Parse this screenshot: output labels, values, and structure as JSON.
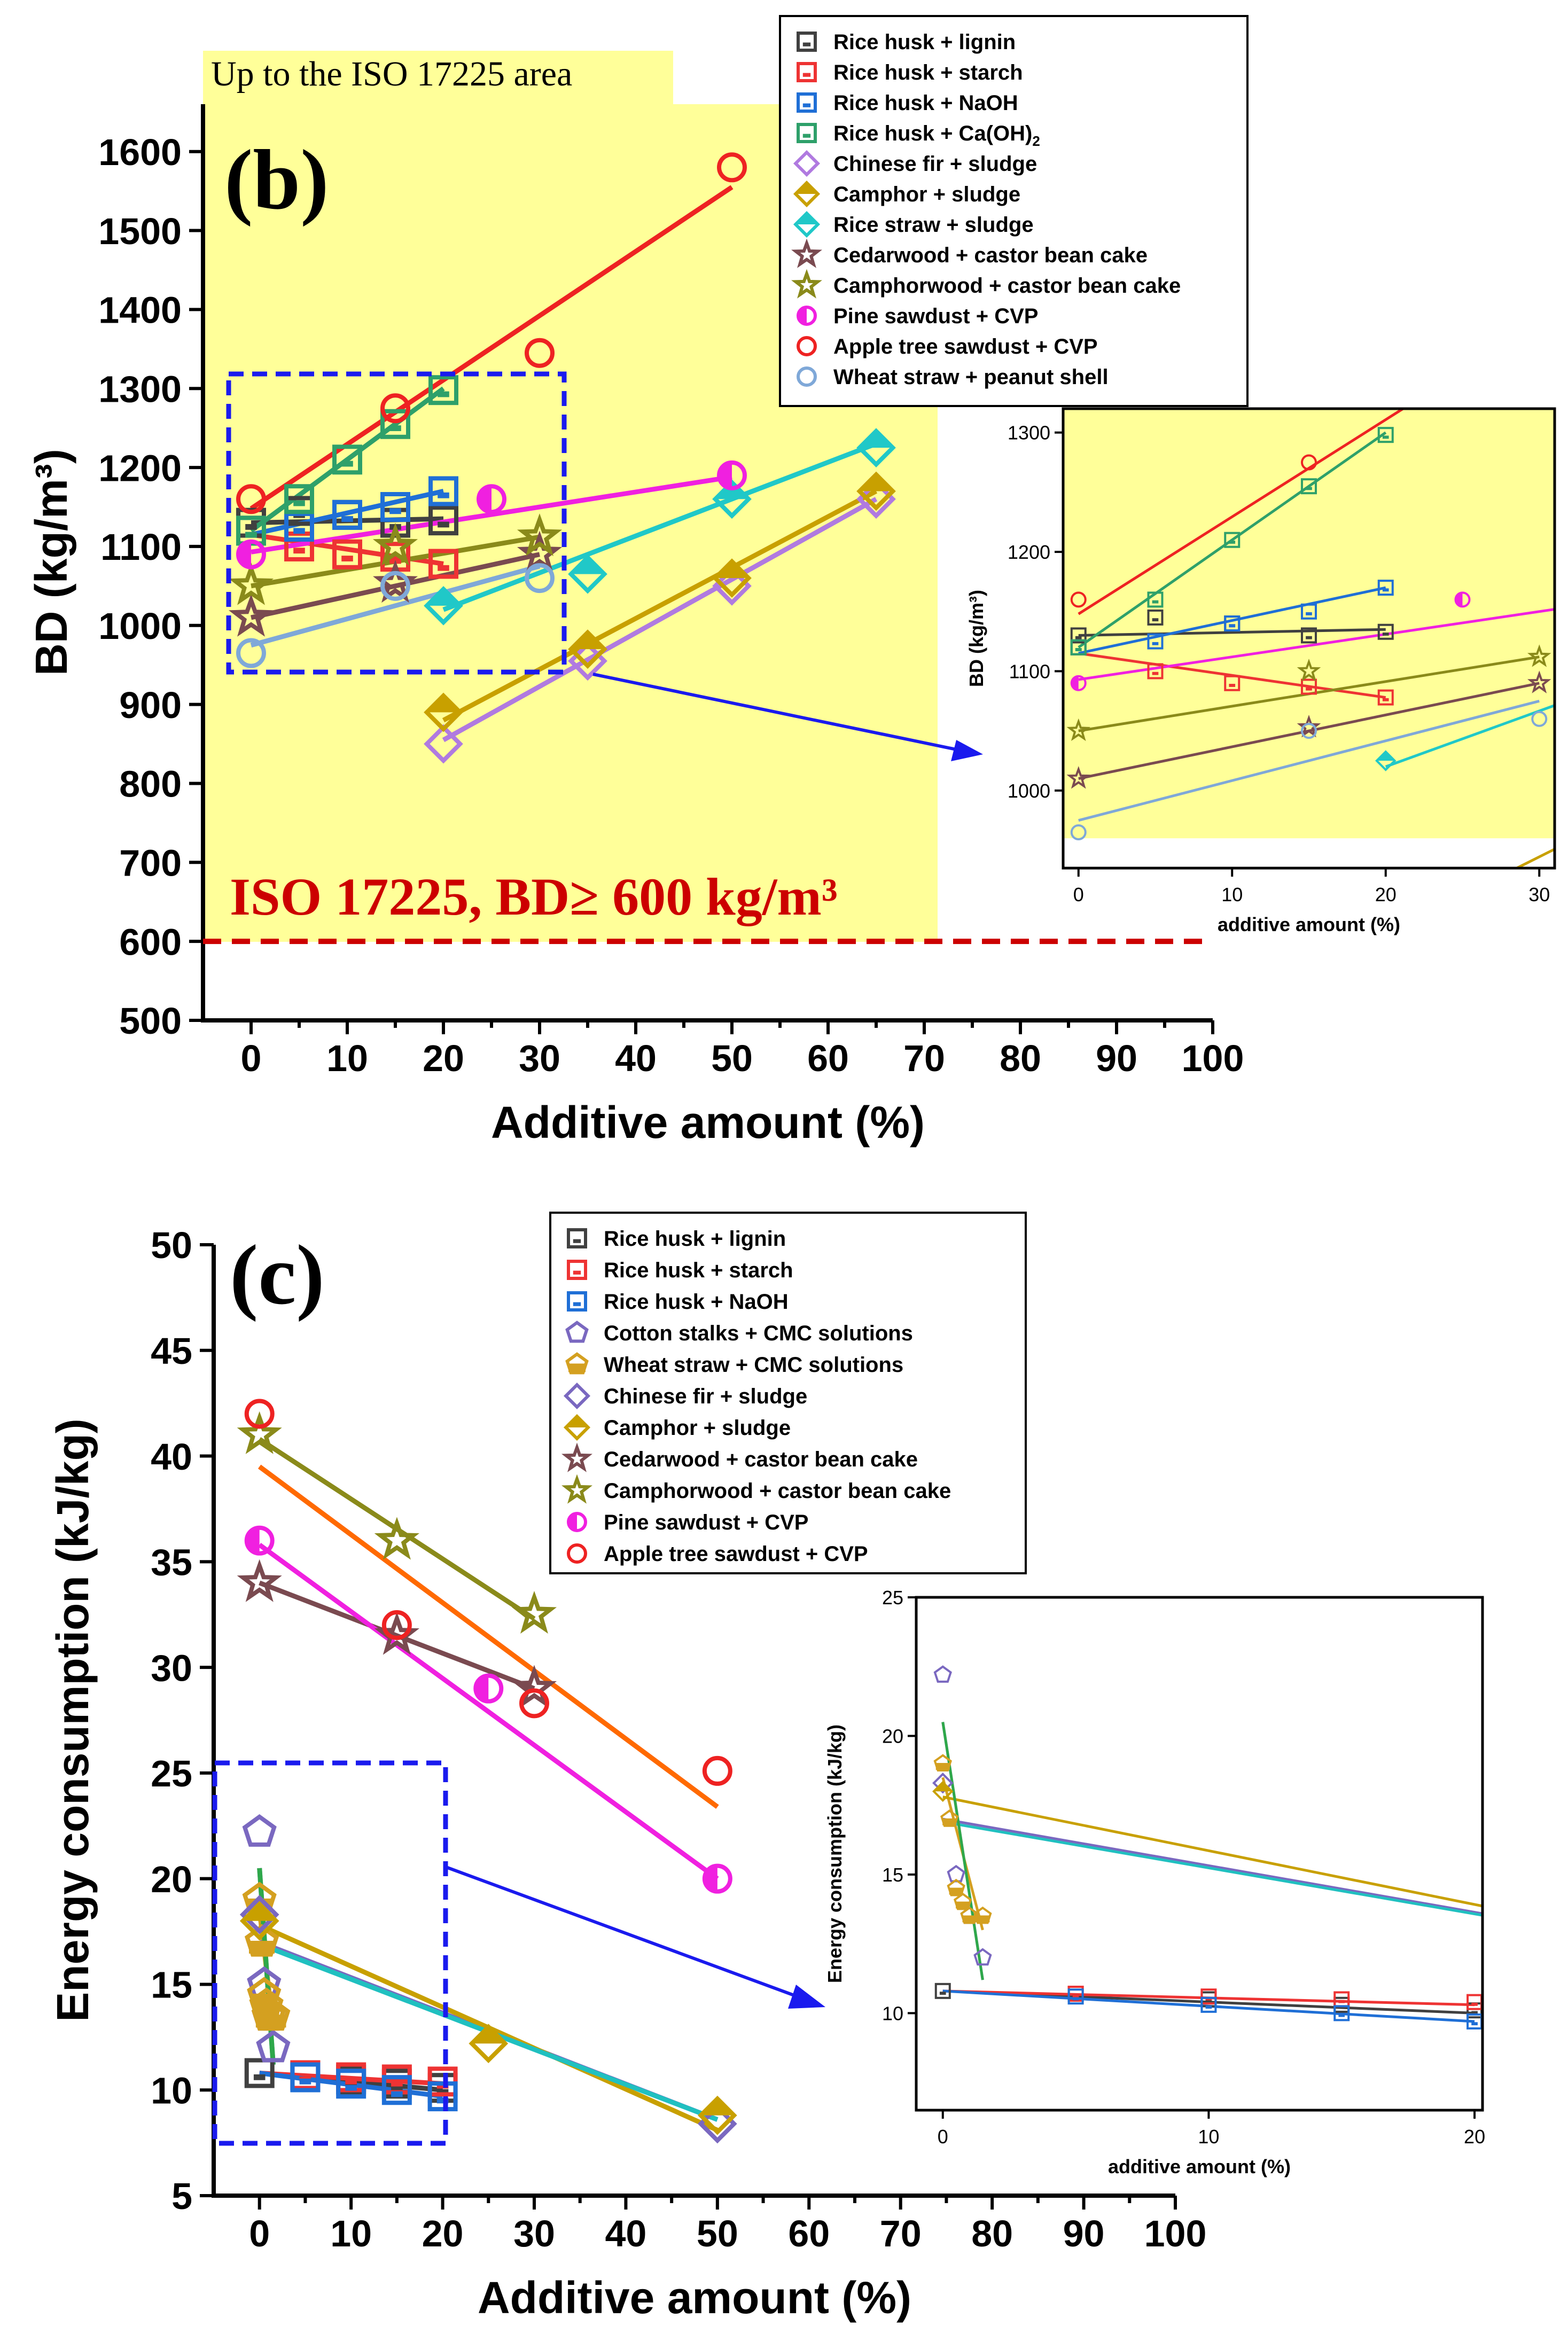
{
  "chart_data": [
    {
      "panel": "b",
      "type": "line",
      "panel_label": "(b)",
      "xlabel": "Additive amount (%)",
      "ylabel": "BD (kg/m³)",
      "xlim": [
        -5,
        100
      ],
      "ylim": [
        500,
        1660
      ],
      "xticks": [
        0,
        10,
        20,
        30,
        40,
        50,
        60,
        70,
        80,
        90,
        100
      ],
      "yticks": [
        500,
        600,
        700,
        800,
        900,
        1000,
        1100,
        1200,
        1300,
        1400,
        1500,
        1600
      ],
      "annotation_region": "Up to the ISO 17225 area",
      "annotation_limit": "ISO 17225, BD≥ 600 kg/m³",
      "threshold": 600,
      "series": [
        {
          "name": "Rice husk + lignin",
          "color": "#404040",
          "marker": "square",
          "x": [
            0,
            5,
            10,
            15,
            20
          ],
          "y": [
            1130,
            1145,
            1140,
            1130,
            1133
          ],
          "fit": [
            [
              0,
              1130
            ],
            [
              20,
              1135
            ]
          ]
        },
        {
          "name": "Rice husk + starch",
          "color": "#ee3333",
          "marker": "square",
          "x": [
            0,
            5,
            10,
            15,
            20
          ],
          "y": [
            1120,
            1100,
            1090,
            1087,
            1078
          ],
          "fit": [
            [
              0,
              1115
            ],
            [
              20,
              1078
            ]
          ]
        },
        {
          "name": "Rice husk + NaOH",
          "color": "#1f6fd6",
          "marker": "square",
          "x": [
            0,
            5,
            10,
            15,
            20
          ],
          "y": [
            1120,
            1125,
            1140,
            1150,
            1170
          ],
          "fit": [
            [
              0,
              1115
            ],
            [
              20,
              1170
            ]
          ]
        },
        {
          "name": "Rice husk + Ca(OH)2",
          "color": "#2ea06a",
          "marker": "square",
          "x": [
            0,
            5,
            10,
            15,
            20
          ],
          "y": [
            1120,
            1160,
            1210,
            1255,
            1298
          ],
          "fit": [
            [
              0,
              1120
            ],
            [
              20,
              1300
            ]
          ]
        },
        {
          "name": "Chinese fir + sludge",
          "color": "#b07ae0",
          "marker": "diamond",
          "x": [
            20,
            35,
            50,
            65
          ],
          "y": [
            850,
            955,
            1050,
            1160
          ],
          "fit": [
            [
              20,
              855
            ],
            [
              65,
              1160
            ]
          ]
        },
        {
          "name": "Camphor + sludge",
          "color": "#c8a000",
          "marker": "diamond",
          "x": [
            20,
            35,
            50,
            65
          ],
          "y": [
            890,
            970,
            1060,
            1170
          ],
          "fit": [
            [
              20,
              880
            ],
            [
              65,
              1170
            ]
          ]
        },
        {
          "name": "Rice straw + sludge",
          "color": "#20c8c8",
          "marker": "diamond",
          "x": [
            20,
            35,
            50,
            65
          ],
          "y": [
            1025,
            1065,
            1160,
            1225
          ],
          "fit": [
            [
              20,
              1020
            ],
            [
              65,
              1230
            ]
          ]
        },
        {
          "name": "Cedarwood + castor bean cake",
          "color": "#7a4a50",
          "marker": "star",
          "x": [
            0,
            15,
            30
          ],
          "y": [
            1010,
            1053,
            1090
          ],
          "fit": [
            [
              0,
              1010
            ],
            [
              30,
              1090
            ]
          ]
        },
        {
          "name": "Camphorwood + castor bean cake",
          "color": "#8a8a1a",
          "marker": "star",
          "x": [
            0,
            15,
            30
          ],
          "y": [
            1050,
            1100,
            1112
          ],
          "fit": [
            [
              0,
              1050
            ],
            [
              30,
              1112
            ]
          ]
        },
        {
          "name": "Pine sawdust + CVP",
          "color": "#f020e0",
          "marker": "halfcircle",
          "x": [
            0,
            25,
            50
          ],
          "y": [
            1090,
            1160,
            1190
          ],
          "fit": [
            [
              0,
              1093
            ],
            [
              50,
              1188
            ]
          ]
        },
        {
          "name": "Apple tree sawdust + CVP",
          "color": "#ee2222",
          "marker": "circle",
          "x": [
            0,
            15,
            30,
            50
          ],
          "y": [
            1160,
            1275,
            1345,
            1580
          ],
          "fit": [
            [
              0,
              1148
            ],
            [
              50,
              1555
            ]
          ]
        },
        {
          "name": "Wheat straw + peanut shell",
          "color": "#7fa8d8",
          "marker": "circle",
          "x": [
            0,
            15,
            30
          ],
          "y": [
            965,
            1050,
            1060
          ],
          "fit": [
            [
              0,
              975
            ],
            [
              30,
              1075
            ]
          ]
        }
      ],
      "inset": {
        "xlabel": "additive amount (%)",
        "ylabel": "BD (kg/m³)",
        "xlim": [
          -1,
          31
        ],
        "ylim": [
          935,
          1320
        ],
        "xticks": [
          0,
          10,
          20,
          30
        ],
        "yticks": [
          1000,
          1100,
          1200,
          1300
        ]
      }
    },
    {
      "panel": "c",
      "type": "line",
      "panel_label": "(c)",
      "xlabel": "Additive amount (%)",
      "ylabel": "Energy consumption (kJ/kg)",
      "xlim": [
        -5,
        100
      ],
      "ylim": [
        5,
        50
      ],
      "xticks": [
        0,
        10,
        20,
        30,
        40,
        50,
        60,
        70,
        80,
        90,
        100
      ],
      "yticks": [
        5,
        10,
        15,
        20,
        25,
        30,
        35,
        40,
        45,
        50
      ],
      "series": [
        {
          "name": "Rice husk + lignin",
          "color": "#404040",
          "marker": "square",
          "x": [
            0,
            5,
            10,
            15,
            20
          ],
          "y": [
            10.8,
            10.7,
            10.5,
            10.3,
            10.1
          ],
          "fit": [
            [
              0,
              10.8
            ],
            [
              20,
              10.0
            ]
          ]
        },
        {
          "name": "Rice husk + starch",
          "color": "#ee3333",
          "marker": "square",
          "x": [
            5,
            10,
            15,
            20
          ],
          "y": [
            10.7,
            10.6,
            10.5,
            10.4
          ],
          "fit": [
            [
              0,
              10.8
            ],
            [
              20,
              10.3
            ]
          ]
        },
        {
          "name": "Rice husk + NaOH",
          "color": "#1f6fd6",
          "marker": "square",
          "x": [
            5,
            10,
            15,
            20
          ],
          "y": [
            10.6,
            10.3,
            10.0,
            9.7
          ],
          "fit": [
            [
              0,
              10.8
            ],
            [
              20,
              9.7
            ]
          ]
        },
        {
          "name": "Cotton stalks + CMC solutions",
          "color": "#7a68c0",
          "marker": "pentagon",
          "x": [
            0,
            0.5,
            1,
            1.5
          ],
          "y": [
            22.2,
            15.0,
            13.5,
            12.0
          ],
          "fit": [
            [
              0,
              20.5
            ],
            [
              1.5,
              11.2
            ]
          ]
        },
        {
          "name": "Wheat straw  + CMC solutions",
          "color": "#d4a020",
          "marker": "pentagon",
          "x": [
            0,
            0.25,
            0.5,
            0.75,
            1,
            1.5
          ],
          "y": [
            19.0,
            17.0,
            14.5,
            14.0,
            13.5,
            13.5
          ],
          "fit": [
            [
              0,
              18.5
            ],
            [
              1.5,
              13.0
            ]
          ]
        },
        {
          "name": "Chinese fir + sludge",
          "color": "#7a68c0",
          "marker": "diamond",
          "x": [
            0,
            50
          ],
          "y": [
            18.3,
            8.4
          ],
          "fit": [
            [
              0,
              17.0
            ],
            [
              50,
              8.6
            ]
          ]
        },
        {
          "name": "Camphor + sludge",
          "color": "#c8a000",
          "marker": "diamond",
          "x": [
            0,
            25,
            50
          ],
          "y": [
            18.0,
            12.2,
            8.8
          ],
          "fit": [
            [
              0,
              17.8
            ],
            [
              50,
              8.1
            ]
          ]
        },
        {
          "name": "Cedarwood + castor bean cake",
          "color": "#7a4a50",
          "marker": "star",
          "x": [
            0,
            15,
            30
          ],
          "y": [
            34.0,
            31.5,
            29.0
          ],
          "fit": [
            [
              0,
              34.0
            ],
            [
              30,
              29.0
            ]
          ]
        },
        {
          "name": "Camphorwood + castor bean cake",
          "color": "#8a8a1a",
          "marker": "star",
          "x": [
            0,
            15,
            30
          ],
          "y": [
            41.0,
            36.0,
            32.5
          ],
          "fit": [
            [
              0,
              40.8
            ],
            [
              30,
              32.3
            ]
          ]
        },
        {
          "name": "Pine sawdust  + CVP",
          "color": "#f020e0",
          "marker": "halfcircle",
          "x": [
            0,
            25,
            50
          ],
          "y": [
            36.0,
            29.0,
            20.0
          ],
          "fit": [
            [
              0,
              35.8
            ],
            [
              50,
              20.0
            ]
          ]
        },
        {
          "name": "Apple tree sawdust + CVP",
          "color": "#ee2222",
          "marker": "circle",
          "x": [
            0,
            15,
            30,
            50
          ],
          "y": [
            42.0,
            32.0,
            28.3,
            25.1
          ],
          "fit": [
            [
              0,
              39.5
            ],
            [
              50,
              23.4
            ]
          ]
        }
      ],
      "extra_fits": [
        {
          "color": "#ff6a00",
          "fit": [
            [
              0,
              39.5
            ],
            [
              50,
              23.4
            ]
          ]
        },
        {
          "color": "#20c0c0",
          "fit": [
            [
              0,
              16.9
            ],
            [
              50,
              8.6
            ]
          ]
        },
        {
          "color": "#2ea84a",
          "fit": [
            [
              0,
              20.5
            ],
            [
              1.5,
              11.2
            ]
          ]
        }
      ],
      "inset": {
        "xlabel": "additive amount (%)",
        "ylabel": "Energy consumption (kJ/kg)",
        "xlim": [
          -1,
          20.3
        ],
        "ylim": [
          6.5,
          25
        ],
        "xticks": [
          0,
          10,
          20
        ],
        "yticks": [
          10,
          15,
          20,
          25
        ]
      }
    }
  ]
}
